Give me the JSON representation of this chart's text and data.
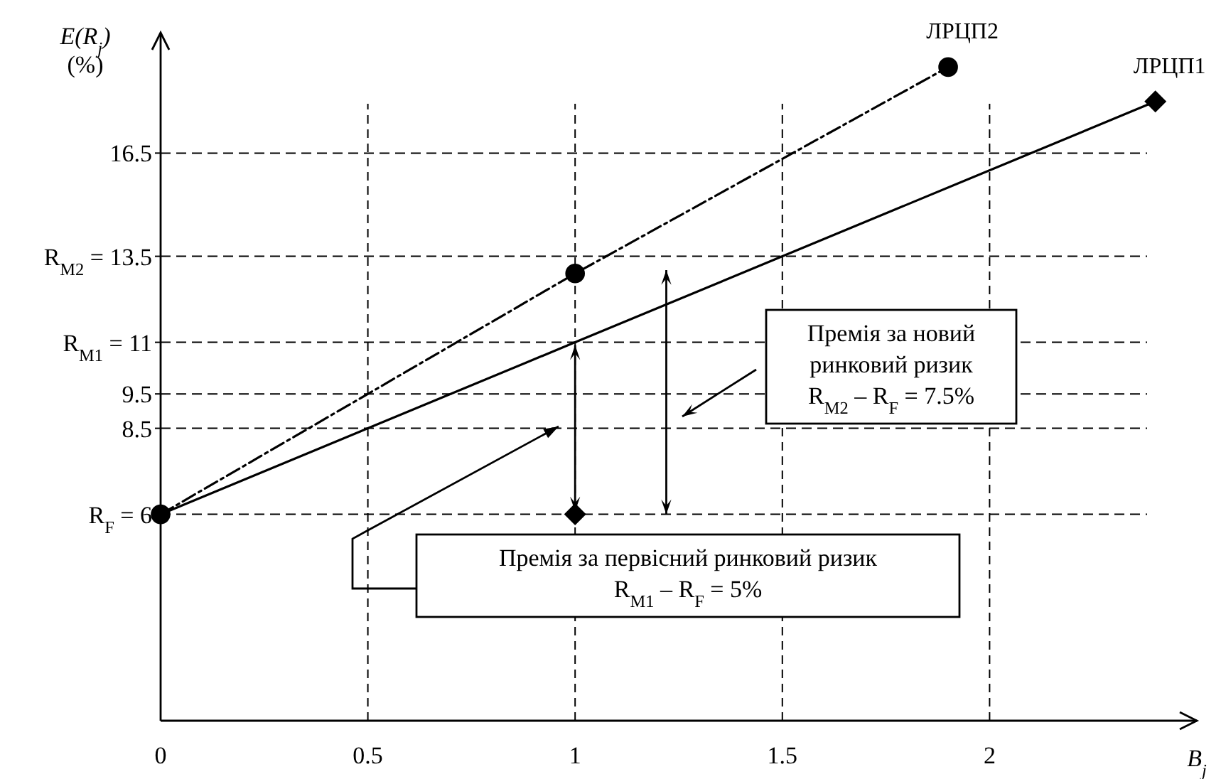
{
  "chart_data": {
    "type": "line",
    "xlabel": "B$_{j}$",
    "ylabel": "E(R$_{j}$)\n(%)",
    "xlim": [
      0,
      2.5
    ],
    "ylim": [
      0,
      20
    ],
    "xticks": [
      0,
      0.5,
      1,
      1.5,
      2
    ],
    "yticks": [
      {
        "value": 6,
        "label": "R$_{F}$ = 6"
      },
      8.5,
      9.5,
      {
        "value": 11,
        "label": "R$_{M1}$ = 11"
      },
      {
        "value": 13.5,
        "label": "R$_{M2}$ = 13.5"
      },
      16.5
    ],
    "grid": true,
    "series": [
      {
        "name": "ЛРЦП1",
        "color": "#000000",
        "x": [
          0,
          1,
          2.4
        ],
        "values": [
          6,
          11,
          18
        ],
        "line_style": "solid",
        "marker": "none"
      },
      {
        "name": "ЛРЦП2",
        "color": "#000000",
        "x": [
          0,
          1,
          1.9
        ],
        "values": [
          6,
          13,
          19
        ],
        "line_style": "dashed",
        "marker": "circle"
      },
      {
        "type": "scatter",
        "color": "#000000",
        "x": [
          1,
          2.4
        ],
        "values": [
          6,
          18
        ],
        "marker": "diamond"
      }
    ],
    "annotations": [
      "Премія за новий\nринковий ризик\nR$_{M2}$ – R$_{F}$ = 7.5%",
      "Премія за первісний ринковий ризик\nR$_{M1}$ – R$_{F}$ = 5%"
    ]
  }
}
